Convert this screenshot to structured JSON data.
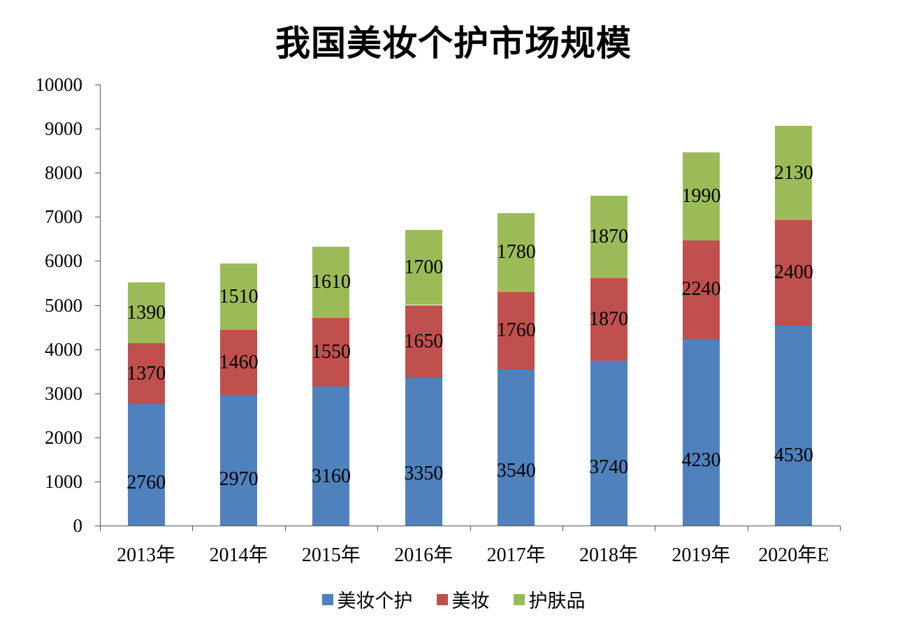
{
  "chart_data": {
    "type": "bar",
    "stacked": true,
    "title": "我国美妆个护市场规模",
    "xlabel": "",
    "ylabel": "",
    "ylim": [
      0,
      10000
    ],
    "yticks": [
      0,
      1000,
      2000,
      3000,
      4000,
      5000,
      6000,
      7000,
      8000,
      9000,
      10000
    ],
    "categories": [
      "2013年",
      "2014年",
      "2015年",
      "2016年",
      "2017年",
      "2018年",
      "2019年",
      "2020年E"
    ],
    "series": [
      {
        "name": "美妆个护",
        "color": "#4f81bd",
        "values": [
          2760,
          2970,
          3160,
          3350,
          3540,
          3740,
          4230,
          4530
        ]
      },
      {
        "name": "美妆",
        "color": "#c0504d",
        "values": [
          1370,
          1460,
          1550,
          1650,
          1760,
          1870,
          2240,
          2400
        ]
      },
      {
        "name": "护肤品",
        "color": "#9bbb59",
        "values": [
          1390,
          1510,
          1610,
          1700,
          1780,
          1870,
          1990,
          2130
        ]
      }
    ],
    "grid": false,
    "legend_position": "bottom",
    "data_labels": true
  }
}
